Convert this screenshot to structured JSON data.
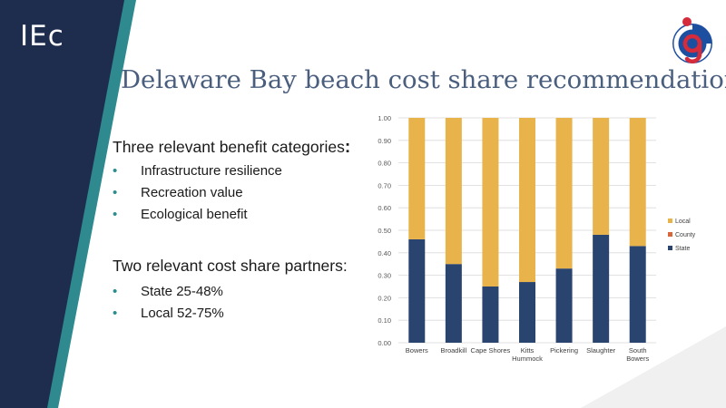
{
  "header": {
    "logo_text": "IEc",
    "title": "Delaware Bay beach cost share recommendations"
  },
  "colors": {
    "sidebar_dark": "#1e2d4e",
    "sidebar_teal": "#2e8a8e",
    "title_color": "#4a5e7e",
    "bullet_color": "#2a8c8c",
    "state": "#2a4470",
    "county": "#d9663a",
    "local": "#e8b34a"
  },
  "benefits": {
    "heading": "Three relevant benefit categories",
    "heading_colon": ":",
    "items": [
      "Infrastructure resilience",
      "Recreation value",
      "Ecological benefit"
    ]
  },
  "partners": {
    "heading": "Two relevant cost share partners:",
    "items": [
      "State 25-48%",
      "Local 52-75%"
    ]
  },
  "bullet_glyph": "•",
  "chart_data": {
    "type": "bar",
    "stacked": true,
    "categories": [
      "Bowers",
      "Broadkill",
      "Cape Shores",
      "Kitts Hummock",
      "Pickering",
      "Slaughter",
      "South Bowers"
    ],
    "category_lines": [
      [
        "Bowers"
      ],
      [
        "Broadkill"
      ],
      [
        "Cape Shores"
      ],
      [
        "Kitts",
        "Hummock"
      ],
      [
        "Pickering"
      ],
      [
        "Slaughter"
      ],
      [
        "South",
        "Bowers"
      ]
    ],
    "series": [
      {
        "name": "State",
        "values": [
          0.46,
          0.35,
          0.25,
          0.27,
          0.33,
          0.48,
          0.43
        ]
      },
      {
        "name": "County",
        "values": [
          0,
          0,
          0,
          0,
          0,
          0,
          0
        ]
      },
      {
        "name": "Local",
        "values": [
          0.54,
          0.65,
          0.75,
          0.73,
          0.67,
          0.52,
          0.57
        ]
      }
    ],
    "ylim": [
      0,
      1
    ],
    "yticks": [
      "0.00",
      "0.10",
      "0.20",
      "0.30",
      "0.40",
      "0.50",
      "0.60",
      "0.70",
      "0.80",
      "0.90",
      "1.00"
    ],
    "legend_order": [
      "Local",
      "County",
      "State"
    ],
    "legend_position": "right",
    "grid": true
  }
}
